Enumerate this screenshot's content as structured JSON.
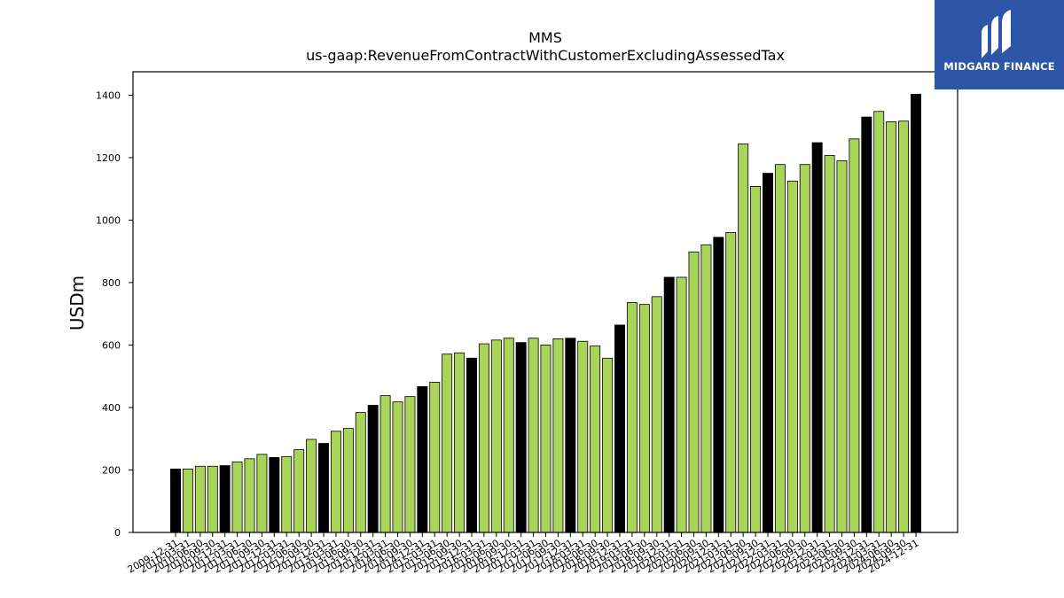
{
  "chart_data": {
    "type": "bar",
    "title": "MMS",
    "subtitle": "us-gaap:RevenueFromContractWithCustomerExcludingAssessedTax",
    "ylabel": "USDm",
    "xlabel": "",
    "ylim": [
      0,
      1475
    ],
    "yticks": [
      0,
      200,
      400,
      600,
      800,
      1000,
      1200,
      1400
    ],
    "colors": {
      "annual": "#000000",
      "quarterly": "#a8d45a",
      "edge": "#000000"
    },
    "categories": [
      "2009-12-31",
      "2010-03-31",
      "2010-06-30",
      "2010-09-30",
      "2010-12-31",
      "2011-03-31",
      "2011-06-30",
      "2011-09-30",
      "2011-12-31",
      "2012-03-31",
      "2012-06-30",
      "2012-09-30",
      "2012-12-31",
      "2013-03-31",
      "2013-06-30",
      "2013-09-30",
      "2013-12-31",
      "2014-03-31",
      "2014-06-30",
      "2014-09-30",
      "2014-12-31",
      "2015-03-31",
      "2015-06-30",
      "2015-09-30",
      "2015-12-31",
      "2016-03-31",
      "2016-06-30",
      "2016-09-30",
      "2016-12-31",
      "2017-03-31",
      "2017-06-30",
      "2017-09-30",
      "2017-12-31",
      "2018-03-31",
      "2018-06-30",
      "2018-09-30",
      "2018-12-31",
      "2019-03-31",
      "2019-06-30",
      "2019-09-30",
      "2019-12-31",
      "2020-03-31",
      "2020-06-30",
      "2020-09-30",
      "2020-12-31",
      "2021-03-31",
      "2021-06-30",
      "2021-09-30",
      "2021-12-31",
      "2022-03-31",
      "2022-06-30",
      "2022-09-30",
      "2022-12-31",
      "2023-03-31",
      "2023-06-30",
      "2023-09-30",
      "2023-12-31",
      "2024-03-31",
      "2024-06-30",
      "2024-09-30",
      "2024-12-31"
    ],
    "values": [
      203,
      203,
      212,
      212,
      214,
      226,
      236,
      250,
      240,
      243,
      265,
      298,
      285,
      324,
      333,
      384,
      407,
      438,
      418,
      435,
      467,
      481,
      571,
      575,
      558,
      604,
      616,
      622,
      608,
      622,
      600,
      620,
      622,
      612,
      597,
      558,
      664,
      736,
      730,
      755,
      817,
      817,
      898,
      921,
      945,
      960,
      1244,
      1108,
      1150,
      1178,
      1125,
      1178,
      1248,
      1207,
      1190,
      1260,
      1330,
      1348,
      1315,
      1317,
      1403
    ],
    "annual": [
      true,
      false,
      false,
      false,
      true,
      false,
      false,
      false,
      true,
      false,
      false,
      false,
      true,
      false,
      false,
      false,
      true,
      false,
      false,
      false,
      true,
      false,
      false,
      false,
      true,
      false,
      false,
      false,
      true,
      false,
      false,
      false,
      true,
      false,
      false,
      false,
      true,
      false,
      false,
      false,
      true,
      false,
      false,
      false,
      true,
      false,
      false,
      false,
      true,
      false,
      false,
      false,
      true,
      false,
      false,
      false,
      true,
      false,
      false,
      false,
      true
    ]
  },
  "logo": {
    "brand_text": "MIDGARD FINANCE",
    "icon": "midgard-logo-icon"
  }
}
